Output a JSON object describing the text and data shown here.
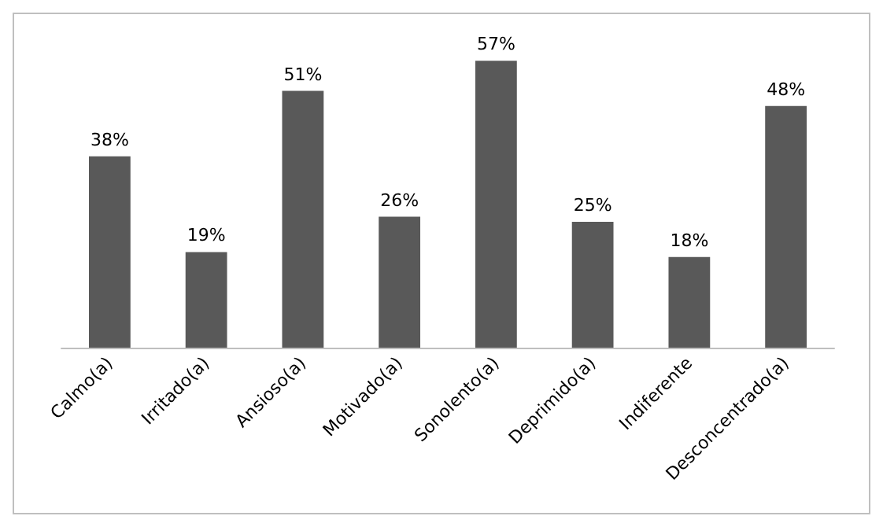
{
  "chart_data": {
    "type": "bar",
    "categories": [
      "Calmo(a)",
      "Irritado(a)",
      "Ansioso(a)",
      "Motivado(a)",
      "Sonolento(a)",
      "Deprimido(a)",
      "Indiferente",
      "Desconcentrado(a)"
    ],
    "values": [
      38,
      19,
      51,
      26,
      57,
      25,
      18,
      48
    ],
    "value_labels": [
      "38%",
      "19%",
      "51%",
      "26%",
      "57%",
      "25%",
      "18%",
      "48%"
    ],
    "color": "#595959",
    "tick_labels": "x"
  }
}
